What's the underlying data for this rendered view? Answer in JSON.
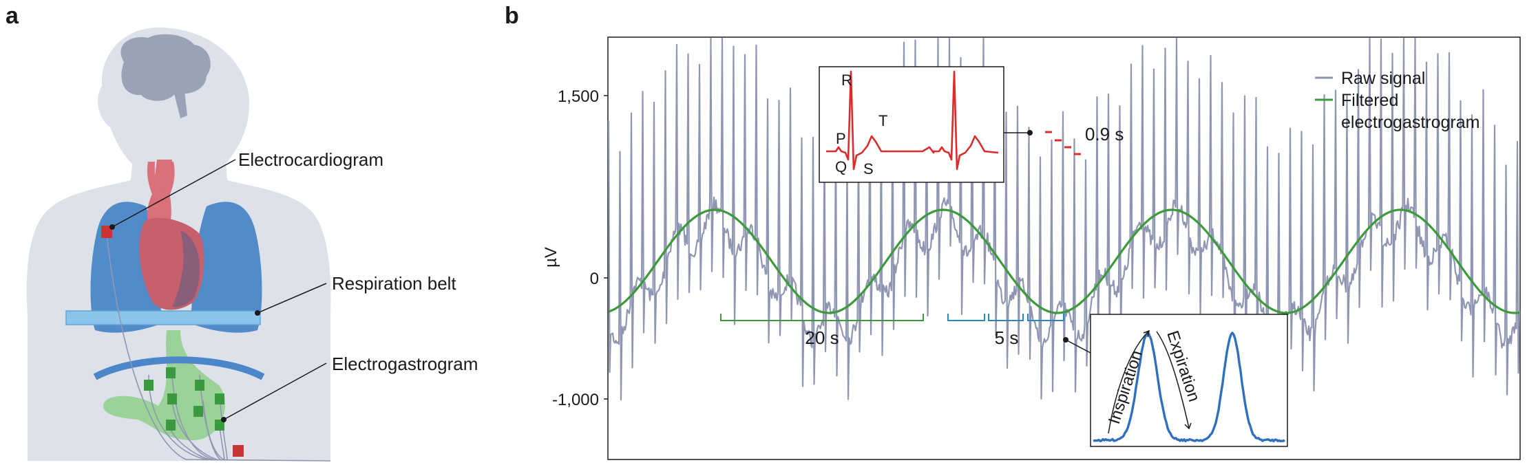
{
  "panels": {
    "a": "a",
    "b": "b"
  },
  "panel_a": {
    "labels": {
      "ecg": "Electrocardiogram",
      "resp": "Respiration belt",
      "egg": "Electrogastrogram"
    },
    "colors": {
      "body": "#dde1ea",
      "lungs": "#4a86c8",
      "heart": "#d9707a",
      "stomach": "#8fcf8a",
      "electrode_green": "#3a9a3f",
      "electrode_red": "#cc3333",
      "belt": "#8cc4ea"
    }
  },
  "panel_b": {
    "y_axis": {
      "label": "µV",
      "ticks": [
        {
          "value": 1500,
          "label": "1,500"
        },
        {
          "value": 0,
          "label": "0"
        },
        {
          "value": -1000,
          "label": "-1,000"
        }
      ],
      "range": [
        -1500,
        2000
      ]
    },
    "legend": {
      "raw": "Raw signal",
      "filtered_l1": "Filtered",
      "filtered_l2": "electrogastrogram"
    },
    "annotations": {
      "period_egg": "20 s",
      "period_resp": "5 s",
      "period_ecg": "0.9 s"
    },
    "ecg_inset": {
      "R": "R",
      "P": "P",
      "T": "T",
      "Q": "Q",
      "S": "S"
    },
    "resp_inset": {
      "inspiration": "Inspiration",
      "expiration": "Expiration"
    },
    "colors": {
      "raw": "#8e96b2",
      "filtered": "#3d9a3a",
      "ecg": "#dd2b2b",
      "resp": "#2f6fc0",
      "bracket_green": "#3d9a3a",
      "bracket_blue": "#2a86c0"
    }
  }
}
